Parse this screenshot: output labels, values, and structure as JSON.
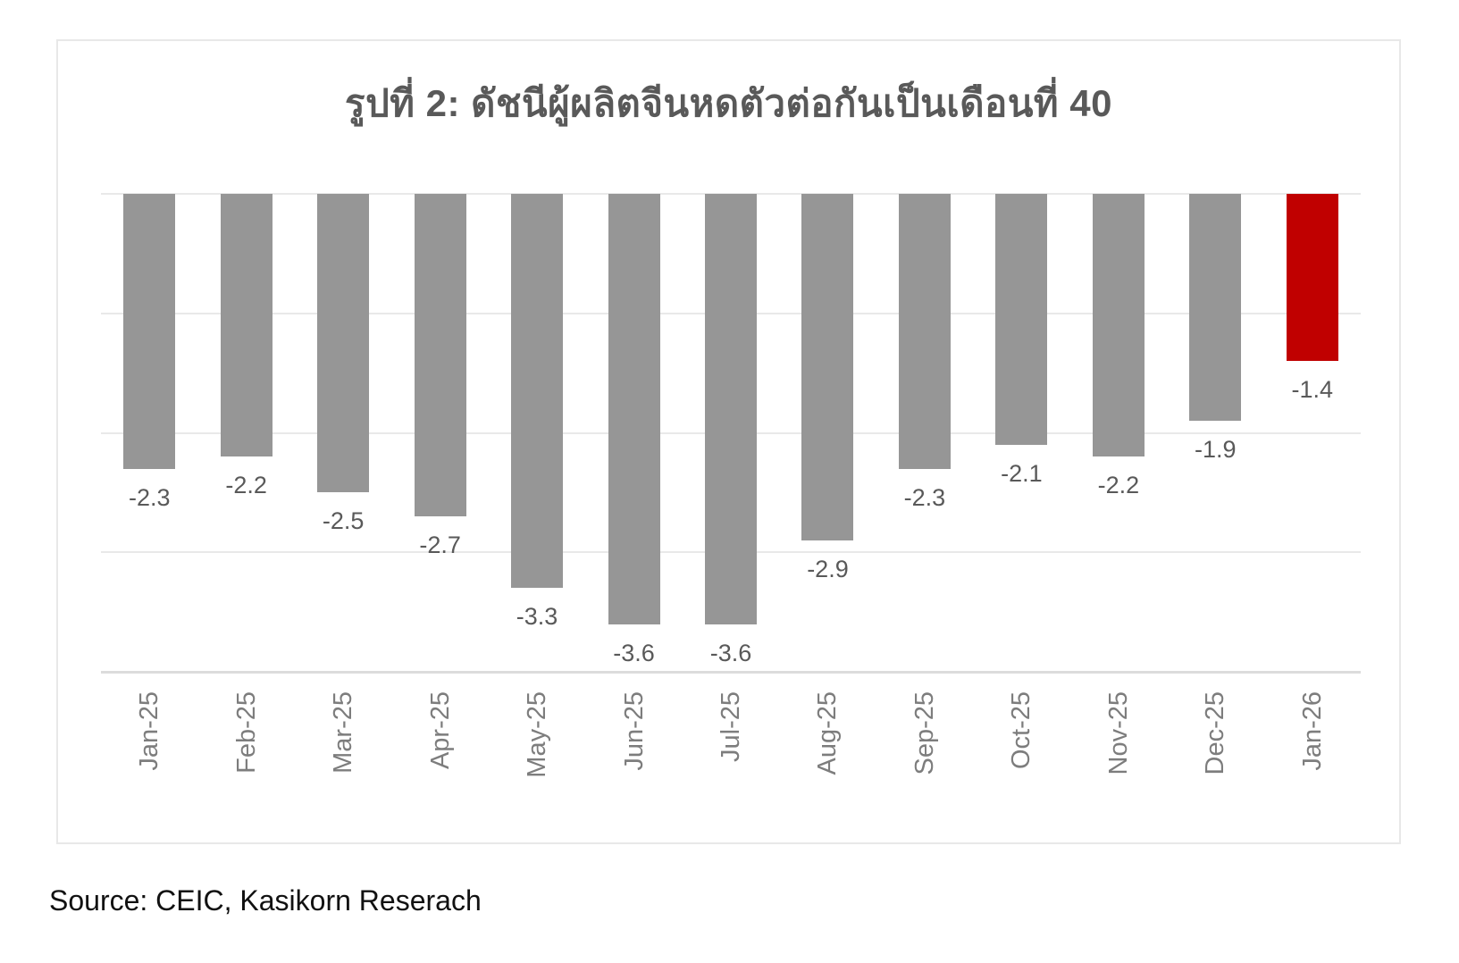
{
  "chart_data": {
    "type": "bar",
    "title": "รูปที่ 2: ดัชนีผู้ผลิตจีนหดตัวต่อกันเป็นเดือนที่ 40",
    "categories": [
      "Jan-25",
      "Feb-25",
      "Mar-25",
      "Apr-25",
      "May-25",
      "Jun-25",
      "Jul-25",
      "Aug-25",
      "Sep-25",
      "Oct-25",
      "Nov-25",
      "Dec-25",
      "Jan-26"
    ],
    "values": [
      -2.3,
      -2.2,
      -2.5,
      -2.7,
      -3.3,
      -3.6,
      -3.6,
      -2.9,
      -2.3,
      -2.1,
      -2.2,
      -1.9,
      -1.4
    ],
    "data_labels": [
      "-2.3",
      "-2.2",
      "-2.5",
      "-2.7",
      "-3.3",
      "-3.6",
      "-3.6",
      "-2.9",
      "-2.3",
      "-2.1",
      "-2.2",
      "-1.9",
      "-1.4"
    ],
    "bar_color": "#969696",
    "highlight_color": "#c00000",
    "highlight_index": 12,
    "ylim": [
      -4,
      0
    ],
    "gridline_values": [
      0,
      -1,
      -2,
      -3,
      -4
    ],
    "grid": "horizontal gridlines on, no y-axis tick labels",
    "legend_position": "none",
    "xlabel": "",
    "ylabel": "",
    "source": "Source: CEIC, Kasikorn Reserach"
  }
}
